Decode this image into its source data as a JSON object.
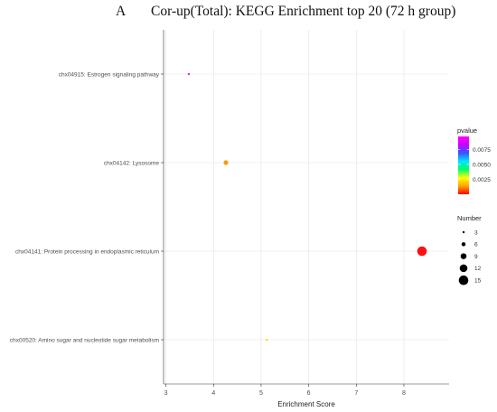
{
  "chart_data": {
    "type": "scatter",
    "panel_label": "A",
    "title": "Cor-up(Total): KEGG Enrichment top 20 (72 h group)",
    "xlabel": "Enrichment Score",
    "ylabel": "",
    "xlim": [
      2.95,
      8.95
    ],
    "xticks": [
      "3",
      "4",
      "5",
      "6",
      "7",
      "8"
    ],
    "grid": true,
    "categories": [
      "chx04915: Estrogen signaling pathway",
      "chx04142: Lysosome",
      "chx04141: Protein processing in endoplasmic reticulum",
      "chx00520: Amino sugar and nucleotide sugar metabolism"
    ],
    "points": [
      {
        "category": "chx04915: Estrogen signaling pathway",
        "x": 3.48,
        "number": 3,
        "pvalue": 0.0095,
        "color": "#e020e0"
      },
      {
        "category": "chx04142: Lysosome",
        "x": 4.26,
        "number": 7,
        "pvalue": 0.0042,
        "color": "#ff9900"
      },
      {
        "category": "chx04141: Protein processing in endoplasmic reticulum",
        "x": 8.38,
        "number": 15,
        "pvalue": 0.0001,
        "color": "#ff1010"
      },
      {
        "category": "chx00520: Amino sugar and nucleotide sugar metabolism",
        "x": 5.12,
        "number": 3,
        "pvalue": 0.0035,
        "color": "#ffd400"
      }
    ],
    "color_legend": {
      "title": "pvalue",
      "ticks": [
        "0.0025",
        "0.0050",
        "0.0075"
      ],
      "tick_values": [
        0.0025,
        0.005,
        0.0075
      ],
      "range": [
        0.0,
        0.0097
      ],
      "gradient": [
        "#ff0000",
        "#ffa500",
        "#ffff00",
        "#00ff66",
        "#00e5ff",
        "#3355ff",
        "#cc00ff",
        "#ff00ff"
      ]
    },
    "size_legend": {
      "title": "Number",
      "values": [
        3,
        6,
        9,
        12,
        15
      ],
      "labels": [
        "3",
        "6",
        "9",
        "12",
        "15"
      ]
    },
    "colors": {
      "panel_bg": "#ffffff",
      "grid": "#e3e3e3",
      "axis": "#333333"
    }
  }
}
